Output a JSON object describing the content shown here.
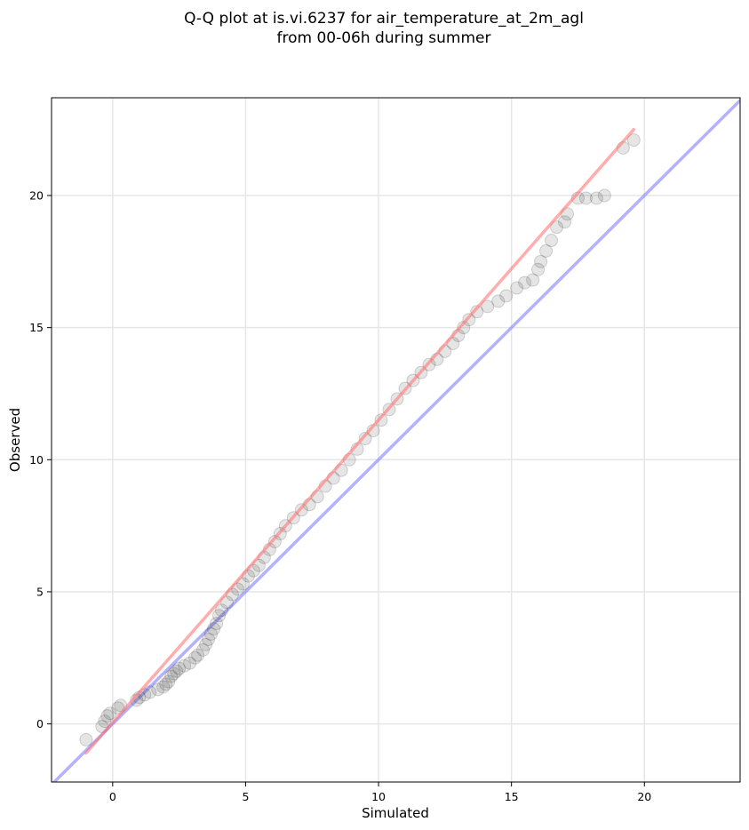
{
  "chart_data": {
    "type": "scatter",
    "title": "Q-Q plot at is.vi.6237 for air_temperature_at_2m_agl",
    "subtitle": "from 00-06h during summer",
    "xlabel": "Simulated",
    "ylabel": "Observed",
    "xlim": [
      -2.3,
      23.6
    ],
    "ylim": [
      -2.2,
      23.7
    ],
    "xticks": [
      0,
      5,
      10,
      15,
      20
    ],
    "yticks": [
      0,
      5,
      10,
      15,
      20
    ],
    "grid": true,
    "points_color": "#333333",
    "points": [
      [
        -1.0,
        -0.6
      ],
      [
        -0.4,
        -0.1
      ],
      [
        -0.3,
        0.1
      ],
      [
        -0.2,
        0.3
      ],
      [
        -0.1,
        0.4
      ],
      [
        0.2,
        0.6
      ],
      [
        0.3,
        0.7
      ],
      [
        0.9,
        0.9
      ],
      [
        1.0,
        1.0
      ],
      [
        1.2,
        1.1
      ],
      [
        1.4,
        1.2
      ],
      [
        1.7,
        1.3
      ],
      [
        1.9,
        1.4
      ],
      [
        2.0,
        1.5
      ],
      [
        2.1,
        1.6
      ],
      [
        2.2,
        1.8
      ],
      [
        2.3,
        1.9
      ],
      [
        2.4,
        2.0
      ],
      [
        2.5,
        2.1
      ],
      [
        2.7,
        2.2
      ],
      [
        2.9,
        2.3
      ],
      [
        3.1,
        2.5
      ],
      [
        3.2,
        2.6
      ],
      [
        3.4,
        2.8
      ],
      [
        3.5,
        3.0
      ],
      [
        3.6,
        3.2
      ],
      [
        3.7,
        3.4
      ],
      [
        3.8,
        3.6
      ],
      [
        3.9,
        3.8
      ],
      [
        4.0,
        4.1
      ],
      [
        4.1,
        4.3
      ],
      [
        4.3,
        4.6
      ],
      [
        4.5,
        4.9
      ],
      [
        4.7,
        5.1
      ],
      [
        4.9,
        5.3
      ],
      [
        5.1,
        5.6
      ],
      [
        5.3,
        5.8
      ],
      [
        5.5,
        6.0
      ],
      [
        5.7,
        6.3
      ],
      [
        5.9,
        6.6
      ],
      [
        6.1,
        6.9
      ],
      [
        6.3,
        7.2
      ],
      [
        6.5,
        7.5
      ],
      [
        6.8,
        7.8
      ],
      [
        7.1,
        8.1
      ],
      [
        7.4,
        8.3
      ],
      [
        7.7,
        8.6
      ],
      [
        8.0,
        9.0
      ],
      [
        8.3,
        9.3
      ],
      [
        8.6,
        9.6
      ],
      [
        8.9,
        10.0
      ],
      [
        9.2,
        10.4
      ],
      [
        9.5,
        10.8
      ],
      [
        9.8,
        11.1
      ],
      [
        10.1,
        11.5
      ],
      [
        10.4,
        11.9
      ],
      [
        10.7,
        12.3
      ],
      [
        11.0,
        12.7
      ],
      [
        11.3,
        13.0
      ],
      [
        11.6,
        13.3
      ],
      [
        11.9,
        13.6
      ],
      [
        12.2,
        13.8
      ],
      [
        12.5,
        14.1
      ],
      [
        12.8,
        14.4
      ],
      [
        13.0,
        14.7
      ],
      [
        13.2,
        15.0
      ],
      [
        13.4,
        15.3
      ],
      [
        13.7,
        15.6
      ],
      [
        14.1,
        15.8
      ],
      [
        14.5,
        16.0
      ],
      [
        14.8,
        16.2
      ],
      [
        15.2,
        16.5
      ],
      [
        15.5,
        16.7
      ],
      [
        15.8,
        16.8
      ],
      [
        16.0,
        17.2
      ],
      [
        16.1,
        17.5
      ],
      [
        16.3,
        17.9
      ],
      [
        16.5,
        18.3
      ],
      [
        16.7,
        18.8
      ],
      [
        17.0,
        19.0
      ],
      [
        17.1,
        19.3
      ],
      [
        17.5,
        19.9
      ],
      [
        17.8,
        19.9
      ],
      [
        18.2,
        19.9
      ],
      [
        18.5,
        20.0
      ],
      [
        19.2,
        21.8
      ],
      [
        19.6,
        22.1
      ]
    ],
    "one_to_one_line": {
      "color": "#8888ff",
      "from": [
        -2.3,
        -2.3
      ],
      "to": [
        23.6,
        23.6
      ]
    },
    "fit_line": {
      "color": "#ff7777",
      "from": [
        -1.0,
        -1.1
      ],
      "to": [
        19.6,
        22.5
      ]
    }
  }
}
